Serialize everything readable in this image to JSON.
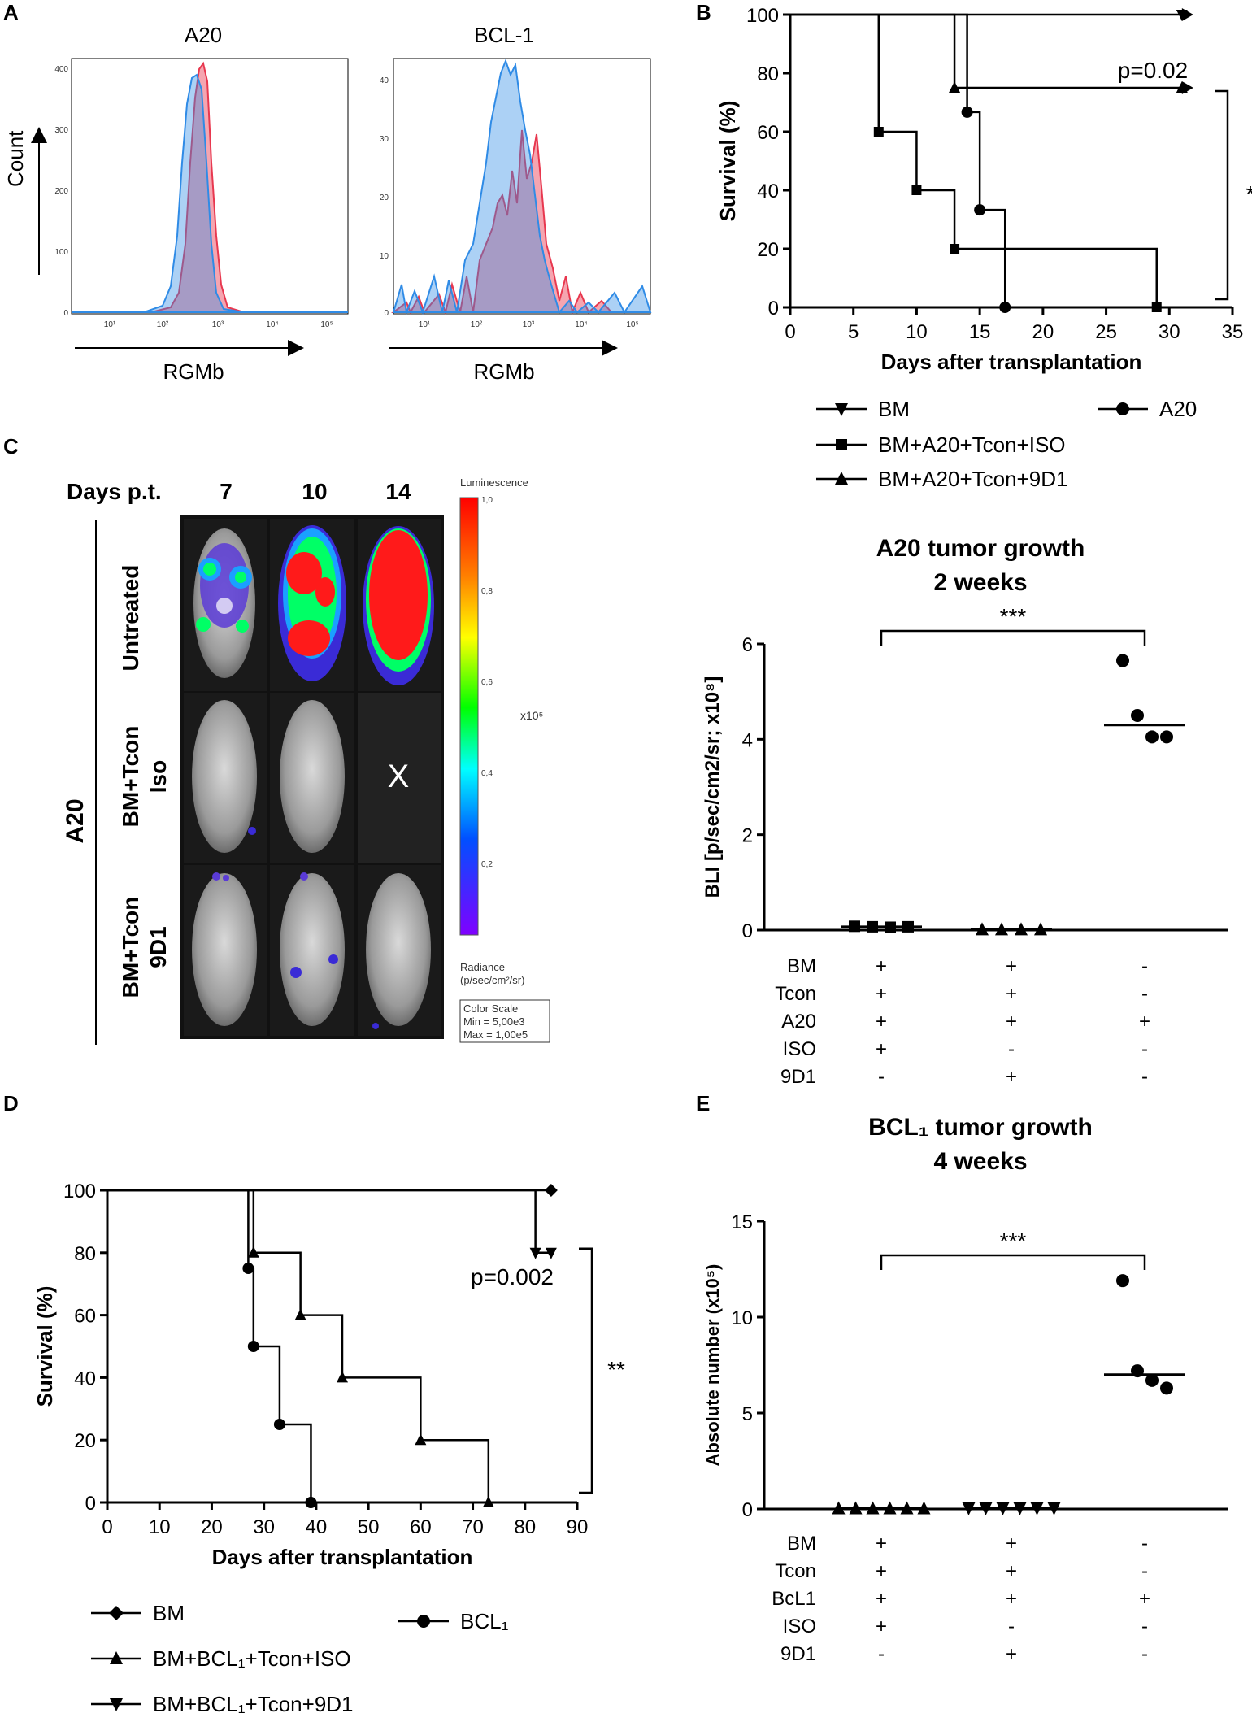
{
  "panels": {
    "A": "A",
    "B": "B",
    "C": "C",
    "D": "D",
    "E": "E"
  },
  "colors": {
    "isotype": "#e8384f",
    "stain": "#2f8be6",
    "overlap": "#a98bc9",
    "black": "#000000"
  },
  "panelA": {
    "count_label": "Count",
    "hist1": {
      "title": "A20",
      "xlabel": "RGMb",
      "x_ticks": [
        "10¹",
        "10²",
        "10³",
        "10⁴",
        "10⁵"
      ],
      "y_ticks": [
        "400",
        "300",
        "200",
        "100",
        "0"
      ]
    },
    "hist2": {
      "title": "BCL-1",
      "xlabel": "RGMb",
      "x_ticks": [
        "10¹",
        "10²",
        "10³",
        "10⁴",
        "10⁵"
      ],
      "y_ticks": [
        "40",
        "30",
        "20",
        "10",
        "0"
      ]
    }
  },
  "panelC": {
    "header": "Days p.t.",
    "days": [
      "7",
      "10",
      "14"
    ],
    "side_label": "A20",
    "row_labels": [
      {
        "line1": "Untreated",
        "line2": ""
      },
      {
        "line1": "BM+Tcon",
        "line2": "Iso"
      },
      {
        "line1": "BM+Tcon",
        "line2": "9D1"
      }
    ],
    "dead_mark": "X",
    "scale": {
      "title": "Luminescence",
      "ticks": [
        "1,0",
        "0,8",
        "0,6",
        "0,4",
        "0,2"
      ],
      "multiplier": "x10⁵",
      "unit1": "Radiance",
      "unit2": "(p/sec/cm²/sr)",
      "box_title": "Color Scale",
      "box_min": "Min = 5,00e3",
      "box_max": "Max = 1,00e5"
    }
  },
  "chart_data": [
    {
      "id": "B",
      "type": "line",
      "subtype": "kaplan-meier",
      "xlabel": "Days after transplantation",
      "ylabel": "Survival (%)",
      "xlim": [
        0,
        35
      ],
      "ylim": [
        0,
        100
      ],
      "x_ticks": [
        0,
        5,
        10,
        15,
        20,
        25,
        30,
        35
      ],
      "y_ticks": [
        0,
        20,
        40,
        60,
        80,
        100
      ],
      "annotations": [
        "p=0.02",
        "*"
      ],
      "series": [
        {
          "name": "BM",
          "marker": "triangle-down",
          "steps": [
            [
              0,
              100
            ],
            [
              31,
              100
            ]
          ],
          "markers": [
            [
              31,
              100
            ]
          ],
          "arrow": true
        },
        {
          "name": "BM+A20+Tcon+ISO",
          "marker": "square",
          "steps": [
            [
              0,
              100
            ],
            [
              7,
              100
            ],
            [
              7,
              60
            ],
            [
              10,
              60
            ],
            [
              10,
              40
            ],
            [
              13,
              40
            ],
            [
              13,
              20
            ],
            [
              29,
              20
            ],
            [
              29,
              0
            ]
          ],
          "markers": [
            [
              7,
              60
            ],
            [
              10,
              40
            ],
            [
              13,
              20
            ],
            [
              29,
              0
            ]
          ]
        },
        {
          "name": "BM+A20+Tcon+9D1",
          "marker": "triangle-up",
          "steps": [
            [
              0,
              100
            ],
            [
              13,
              100
            ],
            [
              13,
              75
            ],
            [
              31,
              75
            ]
          ],
          "markers": [
            [
              13,
              75
            ],
            [
              31,
              75
            ]
          ],
          "arrow": true
        },
        {
          "name": "A20",
          "marker": "circle",
          "steps": [
            [
              0,
              100
            ],
            [
              14,
              100
            ],
            [
              14,
              66.7
            ],
            [
              15,
              66.7
            ],
            [
              15,
              33.3
            ],
            [
              17,
              33.3
            ],
            [
              17,
              0
            ]
          ],
          "markers": [
            [
              14,
              66.7
            ],
            [
              15,
              33.3
            ],
            [
              17,
              0
            ]
          ]
        }
      ],
      "legend": [
        "BM",
        "BM+A20+Tcon+ISO",
        "BM+A20+Tcon+9D1",
        "A20"
      ]
    },
    {
      "id": "C-right",
      "type": "scatter",
      "title_line1": "A20 tumor growth",
      "title_line2": "2 weeks",
      "ylabel": "BLI [p/sec/cm2/sr; x10⁸]",
      "ylim": [
        0,
        6
      ],
      "y_ticks": [
        0,
        2,
        4,
        6
      ],
      "significance": "***",
      "groups": [
        {
          "marker": "square",
          "values": [
            0.08,
            0.07,
            0.06,
            0.07
          ],
          "median": 0.07
        },
        {
          "marker": "triangle-up",
          "values": [
            0.01,
            0.01,
            0.01,
            0.01
          ],
          "median": 0.01
        },
        {
          "marker": "circle",
          "values": [
            5.65,
            4.5,
            4.05,
            4.05
          ],
          "median": 4.3
        }
      ],
      "table": {
        "rows": [
          "BM",
          "Tcon",
          "A20",
          "ISO",
          "9D1"
        ],
        "cols": [
          [
            "+",
            "+",
            "+",
            "+",
            "-"
          ],
          [
            "+",
            "+",
            "+",
            "-",
            "+"
          ],
          [
            "-",
            "-",
            "+",
            "-",
            "-"
          ]
        ]
      }
    },
    {
      "id": "D",
      "type": "line",
      "subtype": "kaplan-meier",
      "xlabel": "Days after transplantation",
      "ylabel": "Survival (%)",
      "xlim": [
        0,
        90
      ],
      "ylim": [
        0,
        100
      ],
      "x_ticks": [
        0,
        10,
        20,
        30,
        40,
        50,
        60,
        70,
        80,
        90
      ],
      "y_ticks": [
        0,
        20,
        40,
        60,
        80,
        100
      ],
      "annotations": [
        "p=0.002",
        "**"
      ],
      "series": [
        {
          "name": "BM",
          "marker": "diamond",
          "steps": [
            [
              0,
              100
            ],
            [
              85,
              100
            ]
          ],
          "markers": [
            [
              85,
              100
            ]
          ]
        },
        {
          "name": "BM+BCL₁+Tcon+ISO",
          "marker": "triangle-up",
          "steps": [
            [
              0,
              100
            ],
            [
              28,
              100
            ],
            [
              28,
              80
            ],
            [
              37,
              80
            ],
            [
              37,
              60
            ],
            [
              45,
              60
            ],
            [
              45,
              40
            ],
            [
              60,
              40
            ],
            [
              60,
              20
            ],
            [
              73,
              20
            ],
            [
              73,
              0
            ]
          ],
          "markers": [
            [
              28,
              80
            ],
            [
              37,
              60
            ],
            [
              45,
              40
            ],
            [
              60,
              20
            ],
            [
              73,
              0
            ]
          ]
        },
        {
          "name": "BM+BCL₁+Tcon+9D1",
          "marker": "triangle-down",
          "steps": [
            [
              0,
              100
            ],
            [
              82,
              100
            ],
            [
              82,
              80
            ],
            [
              85,
              80
            ]
          ],
          "markers": [
            [
              82,
              80
            ],
            [
              85,
              80
            ]
          ]
        },
        {
          "name": "BCL₁",
          "marker": "circle",
          "steps": [
            [
              0,
              100
            ],
            [
              27,
              100
            ],
            [
              27,
              75
            ],
            [
              28,
              75
            ],
            [
              28,
              50
            ],
            [
              33,
              50
            ],
            [
              33,
              25
            ],
            [
              39,
              25
            ],
            [
              39,
              0
            ]
          ],
          "markers": [
            [
              27,
              75
            ],
            [
              28,
              50
            ],
            [
              33,
              25
            ],
            [
              39,
              0
            ]
          ]
        }
      ],
      "legend": [
        "BM",
        "BM+BCL₁+Tcon+ISO",
        "BM+BCL₁+Tcon+9D1",
        "BCL₁"
      ]
    },
    {
      "id": "E",
      "type": "scatter",
      "title_line1": "BCL₁ tumor growth",
      "title_line2": "4 weeks",
      "ylabel": "Absolute number (x10⁵)",
      "ylim": [
        0,
        15
      ],
      "y_ticks": [
        0,
        5,
        10,
        15
      ],
      "significance": "***",
      "groups": [
        {
          "marker": "triangle-up",
          "values": [
            0.02,
            0.02,
            0.02,
            0.02,
            0.02,
            0.02
          ],
          "median": 0.02
        },
        {
          "marker": "triangle-down",
          "values": [
            0.05,
            0.05,
            0.05,
            0.05,
            0.05,
            0.05
          ],
          "median": 0.05
        },
        {
          "marker": "circle",
          "values": [
            11.9,
            7.2,
            6.7,
            6.3
          ],
          "median": 7.0
        }
      ],
      "table": {
        "rows": [
          "BM",
          "Tcon",
          "BcL1",
          "ISO",
          "9D1"
        ],
        "cols": [
          [
            "+",
            "+",
            "+",
            "+",
            "-"
          ],
          [
            "+",
            "+",
            "+",
            "-",
            "+"
          ],
          [
            "-",
            "-",
            "+",
            "-",
            "-"
          ]
        ]
      }
    }
  ]
}
